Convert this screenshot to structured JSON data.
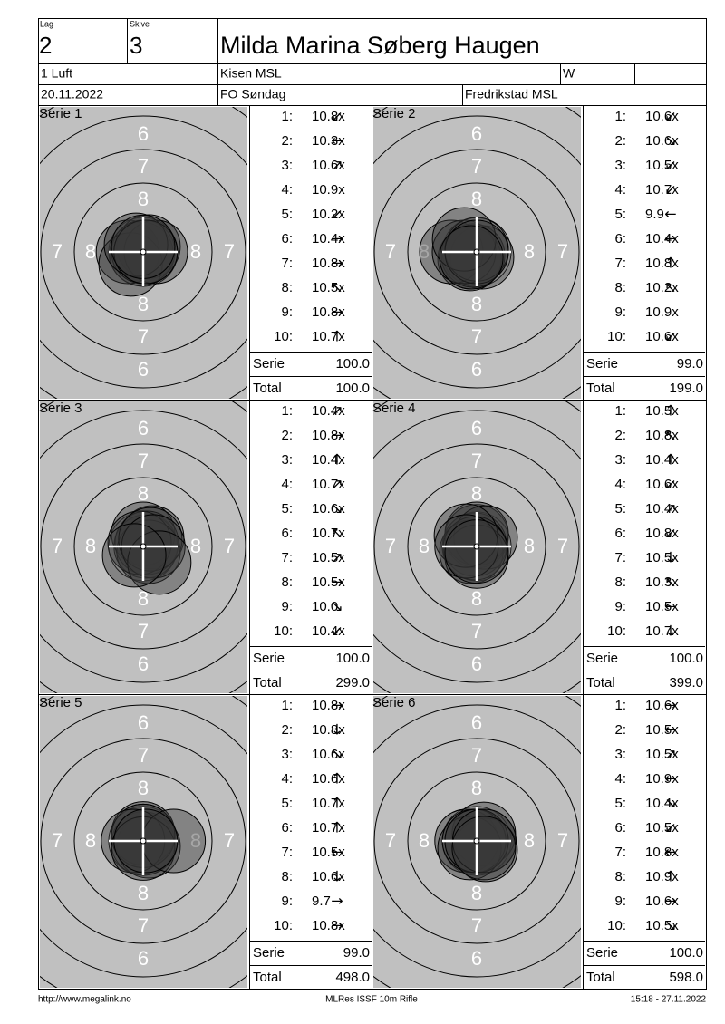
{
  "header": {
    "lag_label": "Lag",
    "lag": "2",
    "skive_label": "Skive",
    "skive": "3",
    "name": "Milda Marina Søberg Haugen",
    "class": "1 Luft",
    "club": "Kisen MSL",
    "gender": "W",
    "date": "20.11.2022",
    "event": "FO Søndag",
    "organizer": "Fredrikstad MSL"
  },
  "ring_numbers": [
    "6",
    "7",
    "8"
  ],
  "series": [
    {
      "title": "Serie 1",
      "shots": [
        {
          "no": "1:",
          "score": "10.8x",
          "dir": "↙"
        },
        {
          "no": "2:",
          "score": "10.3x",
          "dir": "←"
        },
        {
          "no": "3:",
          "score": "10.6x",
          "dir": "↗"
        },
        {
          "no": "4:",
          "score": "10.9x"
        },
        {
          "no": "5:",
          "score": "10.2x",
          "dir": "↙"
        },
        {
          "no": "6:",
          "score": "10.4x",
          "dir": "→"
        },
        {
          "no": "7:",
          "score": "10.8x",
          "dir": "→"
        },
        {
          "no": "8:",
          "score": "10.5x",
          "dir": "↖"
        },
        {
          "no": "9:",
          "score": "10.8x",
          "dir": "→"
        },
        {
          "no": "10:",
          "score": "10.7x",
          "dir": "↑"
        }
      ],
      "serie_label": "Serie",
      "serie": "100.0",
      "total_label": "Total",
      "total": "100.0"
    },
    {
      "title": "Serie 2",
      "shots": [
        {
          "no": "1:",
          "score": "10.6x",
          "dir": "↙"
        },
        {
          "no": "2:",
          "score": "10.6x",
          "dir": "↘"
        },
        {
          "no": "3:",
          "score": "10.5x",
          "dir": "↙"
        },
        {
          "no": "4:",
          "score": "10.7x",
          "dir": "↙"
        },
        {
          "no": "5:",
          "score": "9.9",
          "dir": "←"
        },
        {
          "no": "6:",
          "score": "10.4x",
          "dir": "←"
        },
        {
          "no": "7:",
          "score": "10.8x",
          "dir": "↑"
        },
        {
          "no": "8:",
          "score": "10.2x",
          "dir": "↖"
        },
        {
          "no": "9:",
          "score": "10.9x"
        },
        {
          "no": "10:",
          "score": "10.6x",
          "dir": "↙"
        }
      ],
      "serie_label": "Serie",
      "serie": "99.0",
      "total_label": "Total",
      "total": "199.0"
    },
    {
      "title": "Serie 3",
      "shots": [
        {
          "no": "1:",
          "score": "10.4x",
          "dir": "↗"
        },
        {
          "no": "2:",
          "score": "10.8x",
          "dir": "→"
        },
        {
          "no": "3:",
          "score": "10.4x",
          "dir": "↑"
        },
        {
          "no": "4:",
          "score": "10.7x",
          "dir": "↗"
        },
        {
          "no": "5:",
          "score": "10.6x",
          "dir": "↘"
        },
        {
          "no": "6:",
          "score": "10.7x",
          "dir": "↖"
        },
        {
          "no": "7:",
          "score": "10.5x",
          "dir": "↗"
        },
        {
          "no": "8:",
          "score": "10.5x",
          "dir": "→"
        },
        {
          "no": "9:",
          "score": "10.0",
          "dir": "↘"
        },
        {
          "no": "10:",
          "score": "10.4x",
          "dir": "↙"
        }
      ],
      "serie_label": "Serie",
      "serie": "100.0",
      "total_label": "Total",
      "total": "299.0"
    },
    {
      "title": "Serie 4",
      "shots": [
        {
          "no": "1:",
          "score": "10.5x",
          "dir": "↑"
        },
        {
          "no": "2:",
          "score": "10.8x",
          "dir": "↖"
        },
        {
          "no": "3:",
          "score": "10.4x",
          "dir": "↑"
        },
        {
          "no": "4:",
          "score": "10.6x",
          "dir": "↙"
        },
        {
          "no": "5:",
          "score": "10.4x",
          "dir": "↗"
        },
        {
          "no": "6:",
          "score": "10.8x",
          "dir": "↙"
        },
        {
          "no": "7:",
          "score": "10.5x",
          "dir": "↓"
        },
        {
          "no": "8:",
          "score": "10.3x",
          "dir": "↖"
        },
        {
          "no": "9:",
          "score": "10.5x",
          "dir": "←"
        },
        {
          "no": "10:",
          "score": "10.7x",
          "dir": "↓"
        }
      ],
      "serie_label": "Serie",
      "serie": "100.0",
      "total_label": "Total",
      "total": "399.0"
    },
    {
      "title": "Serie 5",
      "shots": [
        {
          "no": "1:",
          "score": "10.8x",
          "dir": "→"
        },
        {
          "no": "2:",
          "score": "10.8x",
          "dir": "↓"
        },
        {
          "no": "3:",
          "score": "10.6x",
          "dir": "↘"
        },
        {
          "no": "4:",
          "score": "10.6x",
          "dir": "↑"
        },
        {
          "no": "5:",
          "score": "10.7x",
          "dir": "↑"
        },
        {
          "no": "6:",
          "score": "10.7x",
          "dir": "↑"
        },
        {
          "no": "7:",
          "score": "10.5x",
          "dir": "←"
        },
        {
          "no": "8:",
          "score": "10.6x",
          "dir": "↓"
        },
        {
          "no": "9:",
          "score": "9.7",
          "dir": "→"
        },
        {
          "no": "10:",
          "score": "10.8x",
          "dir": "→"
        }
      ],
      "serie_label": "Serie",
      "serie": "99.0",
      "total_label": "Total",
      "total": "498.0"
    },
    {
      "title": "Serie 6",
      "shots": [
        {
          "no": "1:",
          "score": "10.6x",
          "dir": "→"
        },
        {
          "no": "2:",
          "score": "10.5x",
          "dir": "←"
        },
        {
          "no": "3:",
          "score": "10.5x",
          "dir": "↗"
        },
        {
          "no": "4:",
          "score": "10.9x",
          "dir": "←"
        },
        {
          "no": "5:",
          "score": "10.4x",
          "dir": "↘"
        },
        {
          "no": "6:",
          "score": "10.5x",
          "dir": "↙"
        },
        {
          "no": "7:",
          "score": "10.8x",
          "dir": "←"
        },
        {
          "no": "8:",
          "score": "10.9x",
          "dir": "↑"
        },
        {
          "no": "9:",
          "score": "10.6x",
          "dir": "→"
        },
        {
          "no": "10:",
          "score": "10.5x",
          "dir": "↘"
        }
      ],
      "serie_label": "Serie",
      "serie": "100.0",
      "total_label": "Total",
      "total": "598.0"
    }
  ],
  "footer": {
    "url": "http://www.megalink.no",
    "software": "MLRes ISSF 10m Rifle",
    "timestamp": "15:18 - 27.11.2022"
  }
}
